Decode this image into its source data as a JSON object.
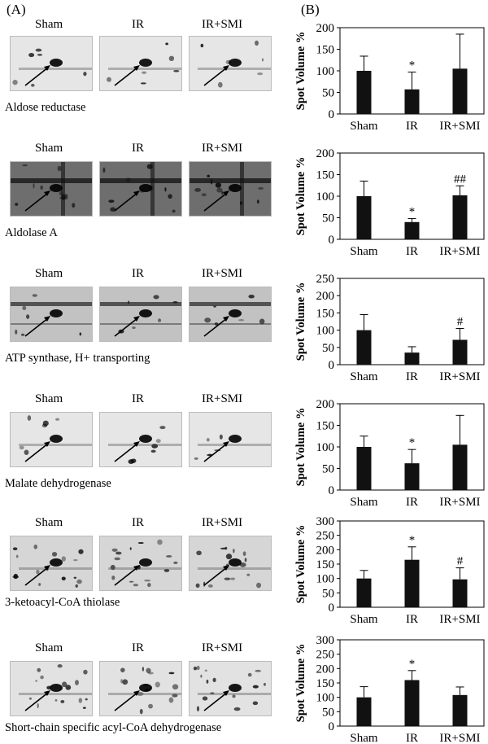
{
  "panel_labels": {
    "a": "(A)",
    "b": "(B)"
  },
  "groups": [
    "Sham",
    "IR",
    "IR+SMI"
  ],
  "colors": {
    "bar": "#111111",
    "axis": "#000000"
  },
  "rows": [
    {
      "protein": "Aldose reductase",
      "blot_style": "light"
    },
    {
      "protein": "Aldolase A",
      "blot_style": "dark"
    },
    {
      "protein": "ATP synthase, H+ transporting",
      "blot_style": "medium"
    },
    {
      "protein": "Malate dehydrogenase",
      "blot_style": "light"
    },
    {
      "protein": "3-ketoacyl-CoA thiolase",
      "blot_style": "dotted"
    },
    {
      "protein": "Short-chain specific acyl-CoA dehydrogenase",
      "blot_style": "light-dotted"
    }
  ],
  "chart_data": [
    {
      "type": "bar",
      "categories": [
        "Sham",
        "IR",
        "IR+SMI"
      ],
      "values": [
        100,
        57,
        105
      ],
      "errors": [
        34,
        40,
        80
      ],
      "annotations": [
        "",
        "*",
        ""
      ],
      "ylabel": "Spot Volume %",
      "ylim": [
        0,
        200
      ],
      "ticks": [
        0,
        50,
        100,
        150,
        200
      ]
    },
    {
      "type": "bar",
      "categories": [
        "Sham",
        "IR",
        "IR+SMI"
      ],
      "values": [
        100,
        40,
        102
      ],
      "errors": [
        35,
        8,
        22
      ],
      "annotations": [
        "",
        "*",
        "##"
      ],
      "ylabel": "Spot Volume %",
      "ylim": [
        0,
        200
      ],
      "ticks": [
        0,
        50,
        100,
        150,
        200
      ]
    },
    {
      "type": "bar",
      "categories": [
        "Sham",
        "IR",
        "IR+SMI"
      ],
      "values": [
        100,
        35,
        72
      ],
      "errors": [
        45,
        17,
        33
      ],
      "annotations": [
        "",
        "",
        "#"
      ],
      "ylabel": "Spot Volume %",
      "ylim": [
        0,
        250
      ],
      "ticks": [
        0,
        50,
        100,
        150,
        200,
        250
      ]
    },
    {
      "type": "bar",
      "categories": [
        "Sham",
        "IR",
        "IR+SMI"
      ],
      "values": [
        100,
        62,
        105
      ],
      "errors": [
        25,
        32,
        68
      ],
      "annotations": [
        "",
        "*",
        ""
      ],
      "ylabel": "Spot Volume %",
      "ylim": [
        0,
        200
      ],
      "ticks": [
        0,
        50,
        100,
        150,
        200
      ]
    },
    {
      "type": "bar",
      "categories": [
        "Sham",
        "IR",
        "IR+SMI"
      ],
      "values": [
        100,
        165,
        97
      ],
      "errors": [
        28,
        45,
        40
      ],
      "annotations": [
        "",
        "*",
        "#"
      ],
      "ylabel": "Spot Volume %",
      "ylim": [
        0,
        300
      ],
      "ticks": [
        0,
        50,
        100,
        150,
        200,
        250,
        300
      ]
    },
    {
      "type": "bar",
      "categories": [
        "Sham",
        "IR",
        "IR+SMI"
      ],
      "values": [
        100,
        160,
        108
      ],
      "errors": [
        37,
        33,
        28
      ],
      "annotations": [
        "",
        "*",
        ""
      ],
      "ylabel": "Spot Volume %",
      "ylim": [
        0,
        300
      ],
      "ticks": [
        0,
        50,
        100,
        150,
        200,
        250,
        300
      ]
    }
  ]
}
